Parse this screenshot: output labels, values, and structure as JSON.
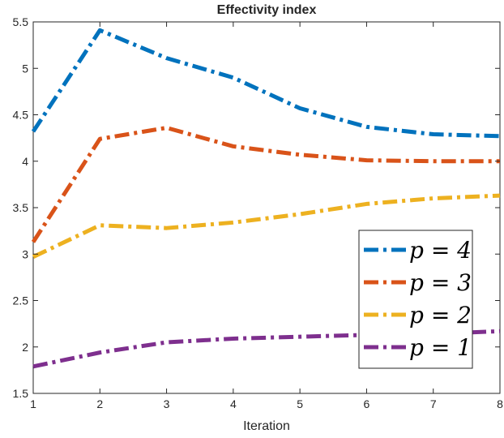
{
  "chart_data": {
    "type": "line",
    "title": "Effectivity index",
    "xlabel": "Iteration",
    "ylabel": "",
    "xlim": [
      1,
      8
    ],
    "ylim": [
      1.5,
      5.5
    ],
    "x": [
      1,
      2,
      3,
      4,
      5,
      6,
      7,
      8
    ],
    "x_ticks": [
      "1",
      "2",
      "3",
      "4",
      "5",
      "6",
      "7",
      "8"
    ],
    "y_ticks": [
      "1.5",
      "2",
      "2.5",
      "3",
      "3.5",
      "4",
      "4.5",
      "5",
      "5.5"
    ],
    "grid": false,
    "legend_position": "bottom-right",
    "series": [
      {
        "name": "p = 4",
        "color": "#0072BD",
        "values": [
          4.32,
          5.41,
          5.11,
          4.9,
          4.57,
          4.37,
          4.29,
          4.27
        ]
      },
      {
        "name": "p = 3",
        "color": "#D95319",
        "values": [
          3.13,
          4.24,
          4.36,
          4.16,
          4.07,
          4.01,
          4.0,
          4.0
        ]
      },
      {
        "name": "p = 2",
        "color": "#EDB120",
        "values": [
          2.97,
          3.31,
          3.28,
          3.34,
          3.43,
          3.54,
          3.6,
          3.63
        ]
      },
      {
        "name": "p = 1",
        "color": "#7E2F8E",
        "values": [
          1.79,
          1.94,
          2.05,
          2.09,
          2.11,
          2.13,
          2.14,
          2.17
        ]
      }
    ]
  }
}
